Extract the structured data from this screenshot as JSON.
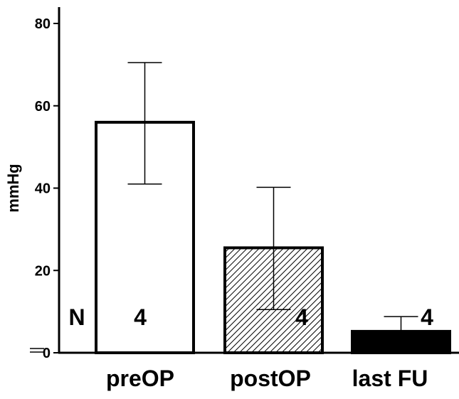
{
  "chart_data": {
    "type": "bar",
    "title": "",
    "xlabel": "",
    "ylabel": "mmHg",
    "ylim": [
      0,
      80
    ],
    "yticks": [
      0,
      20,
      40,
      60,
      80
    ],
    "grid": false,
    "categories": [
      "preOP",
      "postOP",
      "last FU"
    ],
    "values": [
      56,
      25.5,
      5.2
    ],
    "error_upper": [
      70.5,
      40.2,
      8.8
    ],
    "error_lower": [
      41,
      10.5,
      5.2
    ],
    "n_label": "N",
    "n_values": [
      "4",
      "4",
      "4"
    ],
    "bar_fills": [
      "white",
      "hatched",
      "black"
    ]
  },
  "colors": {
    "axis": "#000000",
    "bar_outline": "#000000",
    "background": "#ffffff"
  }
}
